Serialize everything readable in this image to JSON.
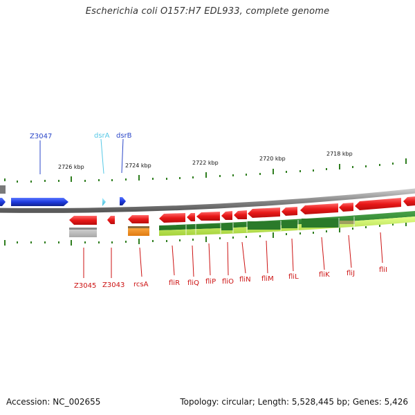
{
  "title": "Escherichia coli O157:H7 EDL933, complete genome",
  "footer": {
    "accession": "Accession: NC_002655",
    "stats": "Topology: circular; Length: 5,528,445 bp; Genes: 5,426"
  },
  "scale_labels": [
    "2726 kbp",
    "2724 kbp",
    "2722 kbp",
    "2720 kbp",
    "2718 kbp"
  ],
  "forward_genes": [
    {
      "name": "Z3047",
      "color": "#2a46c8"
    },
    {
      "name": "dsrA",
      "color": "#55c8e6"
    },
    {
      "name": "dsrB",
      "color": "#2a46c8"
    }
  ],
  "reverse_genes": [
    {
      "name": "Z3045",
      "color": "#cc1111"
    },
    {
      "name": "Z3043",
      "color": "#cc1111"
    },
    {
      "name": "rcsA",
      "color": "#cc1111"
    },
    {
      "name": "fliR",
      "color": "#cc1111"
    },
    {
      "name": "fliQ",
      "color": "#cc1111"
    },
    {
      "name": "fliP",
      "color": "#cc1111"
    },
    {
      "name": "fliO",
      "color": "#cc1111"
    },
    {
      "name": "fliN",
      "color": "#cc1111"
    },
    {
      "name": "fliM",
      "color": "#cc1111"
    },
    {
      "name": "fliL",
      "color": "#cc1111"
    },
    {
      "name": "fliK",
      "color": "#cc1111"
    },
    {
      "name": "fliJ",
      "color": "#cc1111"
    },
    {
      "name": "fliI",
      "color": "#cc1111"
    }
  ],
  "colors": {
    "forward_gene": "#1e3ae0",
    "reverse_gene": "#e81818",
    "backbone": "#8a8a8a",
    "tick": "#2e7d1e",
    "cds_band": "#2e8b2e",
    "highlight_band": "#b8e64a",
    "rcsA_band": "#f08c1a",
    "grey_band": "#b4b4b4"
  }
}
